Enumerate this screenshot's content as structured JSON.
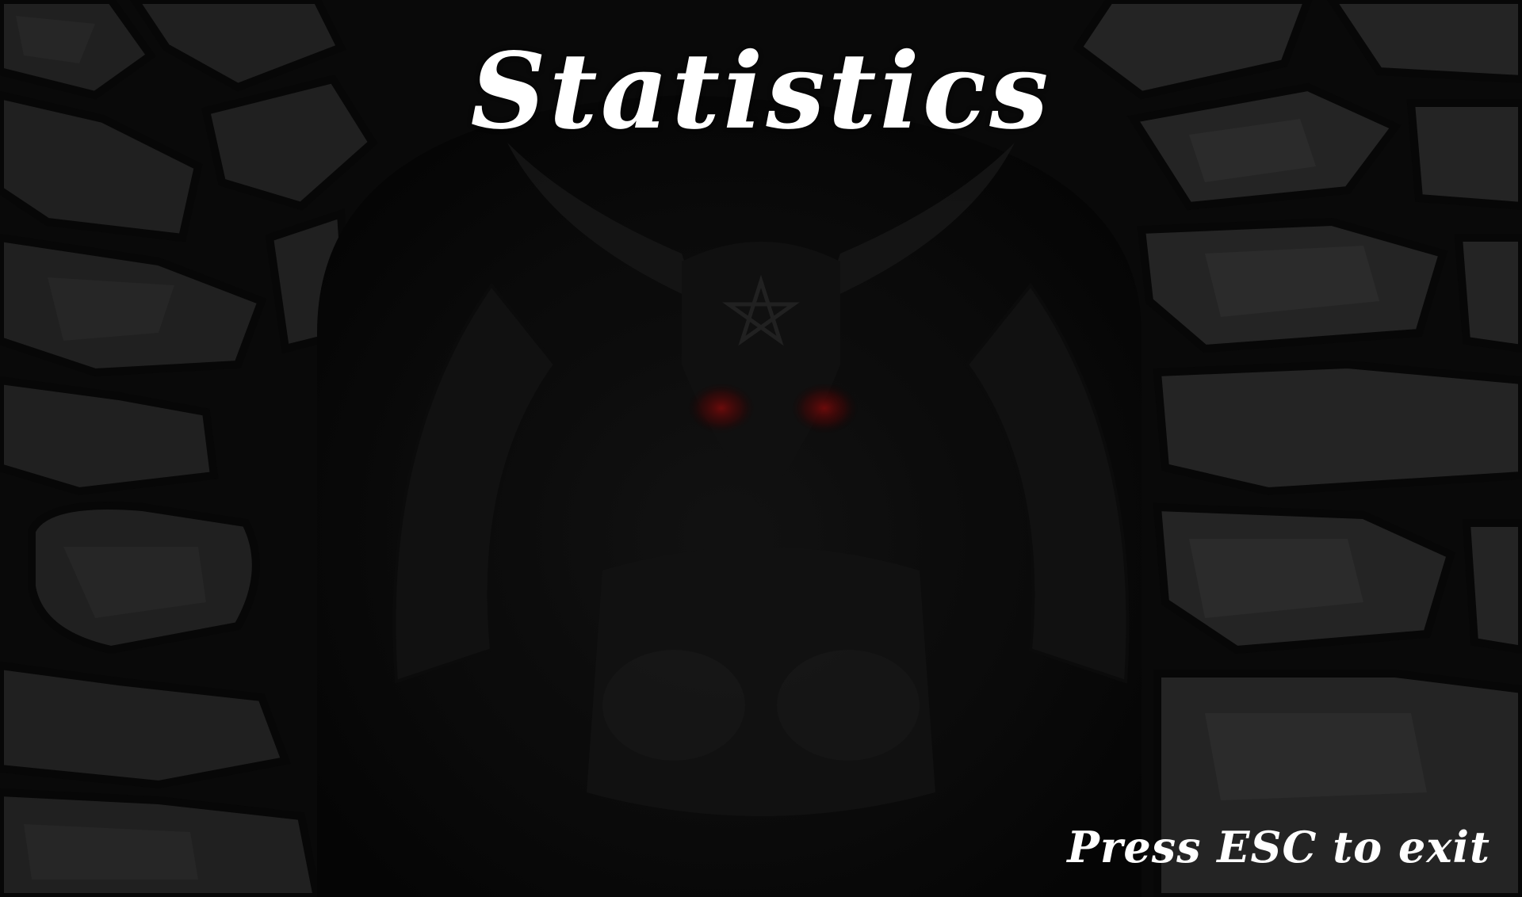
{
  "screen": {
    "title": "Statistics",
    "exit_hint": "Press ESC to exit"
  },
  "colors": {
    "background": "#0a0a0a",
    "stone": "#2a2a2a",
    "stone_light": "#3a3a3a",
    "text": "#ffffff",
    "eyes": "#8a0a0a"
  },
  "icons": {
    "background_art": "demon-goat-idol-in-stone-archway",
    "pentagram": "pentagram-icon"
  }
}
